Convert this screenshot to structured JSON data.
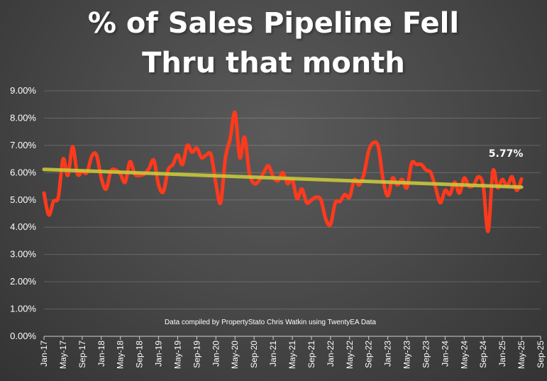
{
  "chart_data": {
    "type": "line",
    "title_lines": [
      "% of Sales Pipeline Fell",
      "Thru that month"
    ],
    "xlabel": "",
    "ylabel": "",
    "ylim": [
      0,
      9
    ],
    "y_ticks": [
      "0.00%",
      "1.00%",
      "2.00%",
      "3.00%",
      "4.00%",
      "5.00%",
      "6.00%",
      "7.00%",
      "8.00%",
      "9.00%"
    ],
    "x_ticks": [
      "Jan-17",
      "May-17",
      "Sep-17",
      "Jan-18",
      "May-18",
      "Sep-18",
      "Jan-19",
      "May-19",
      "Sep-19",
      "Jan-20",
      "May-20",
      "Sep-20",
      "Jan-21",
      "May-21",
      "Sep-21",
      "Jan-22",
      "May-22",
      "Sep-22",
      "Jan-23",
      "May-23",
      "Sep-23",
      "Jan-24",
      "May-24",
      "Sep-24",
      "Jan-25",
      "May-25",
      "Sep-25"
    ],
    "grid": true,
    "series": [
      {
        "color": "#ff3a1c",
        "values": [
          5.25,
          4.45,
          4.95,
          5.1,
          6.5,
          5.9,
          6.95,
          5.95,
          6.05,
          6.0,
          6.6,
          6.65,
          5.8,
          5.4,
          6.05,
          6.1,
          5.95,
          5.65,
          6.4,
          5.95,
          5.9,
          5.95,
          6.15,
          6.45,
          5.55,
          5.3,
          6.1,
          6.3,
          6.65,
          6.3,
          7.0,
          6.75,
          6.9,
          6.55,
          6.65,
          6.65,
          5.6,
          4.9,
          6.55,
          7.25,
          8.2,
          6.55,
          7.3,
          6.0,
          5.6,
          5.7,
          6.0,
          6.25,
          5.85,
          5.7,
          6.0,
          5.6,
          5.75,
          5.05,
          5.4,
          4.9,
          5.0,
          5.1,
          5.0,
          4.3,
          4.1,
          4.9,
          4.95,
          5.2,
          5.1,
          5.75,
          5.55,
          5.95,
          6.8,
          7.1,
          6.95,
          5.75,
          5.15,
          5.8,
          5.55,
          5.75,
          5.45,
          6.35,
          6.3,
          6.3,
          6.1,
          6.0,
          5.45,
          4.9,
          5.35,
          5.2,
          5.65,
          5.25,
          5.8,
          5.5,
          5.55,
          5.85,
          5.5,
          3.85,
          6.05,
          5.45,
          5.75,
          5.5,
          5.85,
          5.35,
          5.77
        ]
      },
      {
        "type": "trend",
        "color": "#c8c83c",
        "values": [
          6.12,
          5.47
        ]
      }
    ],
    "annotations": [
      {
        "text": "5.77%",
        "x_index": 100,
        "y": 5.77
      }
    ],
    "note": "Data compiled by PropertyStato Chris Watkin using TwentyEA Data"
  }
}
